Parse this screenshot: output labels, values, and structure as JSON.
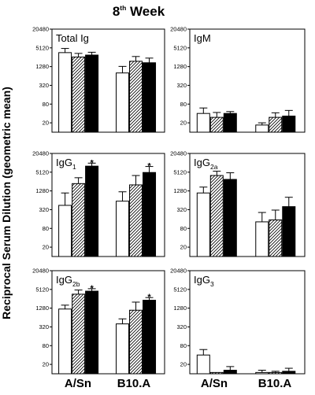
{
  "figure": {
    "title": "8",
    "title_sup": "th",
    "title_rest": " Week",
    "ylabel": "Reciprocal Serum Dilution (geometric mean)",
    "group_labels": [
      "A/Sn",
      "B10.A"
    ]
  },
  "chart_data": [
    {
      "type": "bar",
      "panel": "Total Ig",
      "label": "Total Ig",
      "label_sub": "",
      "log_scale": true,
      "log_base": 2,
      "ylim": [
        10,
        20480
      ],
      "yticks": [
        "20",
        "80",
        "320",
        "1280",
        "5120",
        "20480"
      ],
      "categories": [
        "A/Sn",
        "B10.A"
      ],
      "series_style": [
        "open",
        "hatched",
        "solid"
      ],
      "values": [
        [
          3600,
          2600,
          3000
        ],
        [
          800,
          1900,
          1700
        ]
      ],
      "errors": [
        [
          4900,
          3400,
          3700
        ],
        [
          1300,
          2700,
          2400
        ]
      ],
      "significant": [
        [
          false,
          false,
          false
        ],
        [
          false,
          false,
          false
        ]
      ]
    },
    {
      "type": "bar",
      "panel": "IgM",
      "label": "IgM",
      "label_sub": "",
      "log_scale": true,
      "log_base": 2,
      "ylim": [
        10,
        20480
      ],
      "yticks": [
        "20",
        "80",
        "320",
        "1280",
        "5120",
        "20480"
      ],
      "categories": [
        "A/Sn",
        "B10.A"
      ],
      "series_style": [
        "open",
        "hatched",
        "solid"
      ],
      "values": [
        [
          40,
          30,
          40
        ],
        [
          17,
          30,
          33
        ]
      ],
      "errors": [
        [
          60,
          43,
          46
        ],
        [
          20,
          42,
          50
        ]
      ],
      "significant": [
        [
          false,
          false,
          false
        ],
        [
          false,
          false,
          false
        ]
      ]
    },
    {
      "type": "bar",
      "panel": "IgG1",
      "label": "IgG",
      "label_sub": "1",
      "log_scale": true,
      "log_base": 2,
      "ylim": [
        10,
        20480
      ],
      "yticks": [
        "20",
        "80",
        "320",
        "1280",
        "5120",
        "20480"
      ],
      "categories": [
        "A/Sn",
        "B10.A"
      ],
      "series_style": [
        "open",
        "hatched",
        "solid"
      ],
      "values": [
        [
          440,
          2200,
          8000
        ],
        [
          600,
          2000,
          5000
        ]
      ],
      "errors": [
        [
          1100,
          3400,
          10000
        ],
        [
          1200,
          4000,
          7800
        ]
      ],
      "significant": [
        [
          false,
          false,
          true
        ],
        [
          false,
          false,
          true
        ]
      ]
    },
    {
      "type": "bar",
      "panel": "IgG2a",
      "label": "IgG",
      "label_sub": "2a",
      "log_scale": true,
      "log_base": 2,
      "ylim": [
        10,
        20480
      ],
      "yticks": [
        "20",
        "80",
        "320",
        "1280",
        "5120",
        "20480"
      ],
      "categories": [
        "A/Sn",
        "B10.A"
      ],
      "series_style": [
        "open",
        "hatched",
        "solid"
      ],
      "values": [
        [
          1100,
          4000,
          3000
        ],
        [
          130,
          150,
          400
        ]
      ],
      "errors": [
        [
          1700,
          5500,
          4900
        ],
        [
          260,
          310,
          800
        ]
      ],
      "significant": [
        [
          false,
          false,
          false
        ],
        [
          false,
          false,
          false
        ]
      ]
    },
    {
      "type": "bar",
      "panel": "IgG2b",
      "label": "IgG",
      "label_sub": "2b",
      "log_scale": true,
      "log_base": 2,
      "ylim": [
        10,
        20480
      ],
      "yticks": [
        "20",
        "80",
        "320",
        "1280",
        "5120",
        "20480"
      ],
      "categories": [
        "A/Sn",
        "B10.A"
      ],
      "series_style": [
        "open",
        "hatched",
        "solid"
      ],
      "values": [
        [
          1200,
          3600,
          4500
        ],
        [
          400,
          1100,
          2300
        ]
      ],
      "errors": [
        [
          1600,
          4900,
          5400
        ],
        [
          580,
          2000,
          2800
        ]
      ],
      "significant": [
        [
          false,
          false,
          true
        ],
        [
          false,
          false,
          true
        ]
      ]
    },
    {
      "type": "bar",
      "panel": "IgG3",
      "label": "IgG",
      "label_sub": "3",
      "log_scale": true,
      "log_base": 2,
      "ylim": [
        10,
        20480
      ],
      "yticks": [
        "20",
        "80",
        "320",
        "1280",
        "5120",
        "20480"
      ],
      "categories": [
        "A/Sn",
        "B10.A"
      ],
      "series_style": [
        "open",
        "hatched",
        "solid"
      ],
      "values": [
        [
          40,
          11,
          13
        ],
        [
          11,
          11,
          12
        ]
      ],
      "errors": [
        [
          60,
          11,
          17
        ],
        [
          13,
          12,
          15
        ]
      ],
      "significant": [
        [
          false,
          false,
          false
        ],
        [
          false,
          false,
          false
        ]
      ]
    }
  ]
}
